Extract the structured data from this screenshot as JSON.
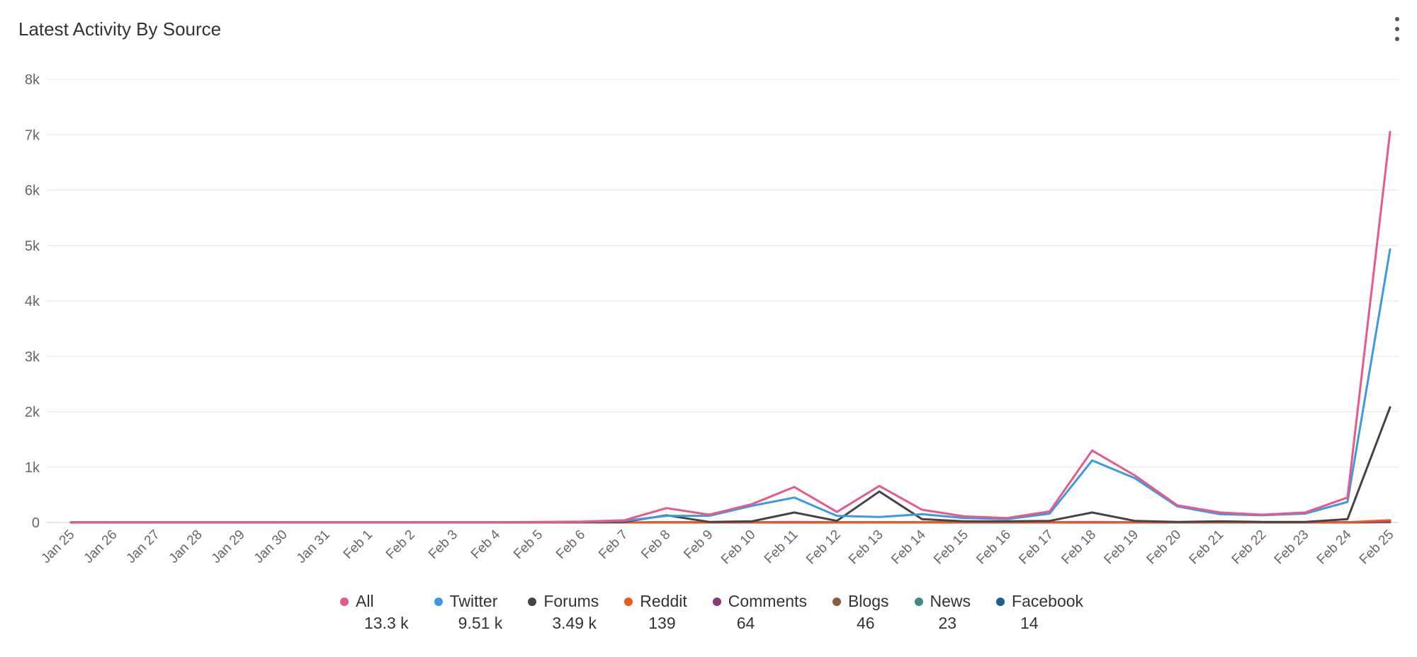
{
  "header": {
    "title": "Latest Activity By Source",
    "menu_icon": "vertical-dots-icon"
  },
  "chart_data": {
    "type": "line",
    "title": "Latest Activity By Source",
    "xlabel": "",
    "ylabel": "",
    "ylim": [
      0,
      8000
    ],
    "yticks": [
      {
        "value": 0,
        "label": "0"
      },
      {
        "value": 1000,
        "label": "1k"
      },
      {
        "value": 2000,
        "label": "2k"
      },
      {
        "value": 3000,
        "label": "3k"
      },
      {
        "value": 4000,
        "label": "4k"
      },
      {
        "value": 5000,
        "label": "5k"
      },
      {
        "value": 6000,
        "label": "6k"
      },
      {
        "value": 7000,
        "label": "7k"
      },
      {
        "value": 8000,
        "label": "8k"
      }
    ],
    "grid": true,
    "legend_position": "bottom",
    "categories": [
      "Jan 25",
      "Jan 26",
      "Jan 27",
      "Jan 28",
      "Jan 29",
      "Jan 30",
      "Jan 31",
      "Feb 1",
      "Feb 2",
      "Feb 3",
      "Feb 4",
      "Feb 5",
      "Feb 6",
      "Feb 7",
      "Feb 8",
      "Feb 9",
      "Feb 10",
      "Feb 11",
      "Feb 12",
      "Feb 13",
      "Feb 14",
      "Feb 15",
      "Feb 16",
      "Feb 17",
      "Feb 18",
      "Feb 19",
      "Feb 20",
      "Feb 21",
      "Feb 22",
      "Feb 23",
      "Feb 24",
      "Feb 25"
    ],
    "series": [
      {
        "name": "All",
        "total": "13.3 k",
        "color": "#e8598a",
        "values": [
          5,
          5,
          5,
          5,
          5,
          5,
          5,
          5,
          5,
          5,
          5,
          10,
          15,
          40,
          260,
          140,
          330,
          640,
          190,
          660,
          230,
          110,
          80,
          200,
          1300,
          850,
          310,
          180,
          140,
          180,
          450,
          7050
        ]
      },
      {
        "name": "Twitter",
        "total": "9.51 k",
        "color": "#3b9ae1",
        "values": [
          3,
          3,
          3,
          3,
          3,
          3,
          3,
          3,
          3,
          3,
          3,
          5,
          10,
          30,
          120,
          120,
          300,
          450,
          120,
          100,
          150,
          80,
          60,
          160,
          1120,
          800,
          290,
          150,
          130,
          160,
          370,
          4930
        ]
      },
      {
        "name": "Forums",
        "total": "3.49 k",
        "color": "#444444",
        "values": [
          1,
          1,
          1,
          1,
          1,
          1,
          1,
          1,
          1,
          1,
          1,
          2,
          5,
          10,
          130,
          10,
          20,
          180,
          30,
          560,
          60,
          20,
          20,
          30,
          180,
          30,
          10,
          20,
          10,
          10,
          60,
          2080
        ]
      },
      {
        "name": "Reddit",
        "total": "139",
        "color": "#ef5623",
        "values": [
          0,
          0,
          0,
          0,
          0,
          0,
          0,
          0,
          0,
          0,
          0,
          0,
          0,
          0,
          5,
          2,
          5,
          10,
          5,
          5,
          5,
          3,
          2,
          5,
          10,
          5,
          3,
          2,
          2,
          3,
          5,
          40
        ]
      },
      {
        "name": "Comments",
        "total": "64",
        "color": "#8b3a7c",
        "values": [
          0,
          0,
          0,
          0,
          0,
          0,
          0,
          0,
          0,
          0,
          0,
          0,
          0,
          0,
          2,
          1,
          2,
          4,
          2,
          2,
          2,
          1,
          1,
          2,
          4,
          2,
          1,
          1,
          1,
          1,
          2,
          20
        ]
      },
      {
        "name": "Blogs",
        "total": "46",
        "color": "#8d5a3c",
        "values": [
          0,
          0,
          0,
          0,
          0,
          0,
          0,
          0,
          0,
          0,
          0,
          0,
          0,
          0,
          2,
          1,
          2,
          3,
          1,
          2,
          2,
          1,
          1,
          2,
          3,
          2,
          1,
          1,
          1,
          1,
          2,
          15
        ]
      },
      {
        "name": "News",
        "total": "23",
        "color": "#3e8b86",
        "values": [
          0,
          0,
          0,
          0,
          0,
          0,
          0,
          0,
          0,
          0,
          0,
          0,
          0,
          0,
          1,
          0,
          1,
          2,
          1,
          1,
          1,
          0,
          0,
          1,
          2,
          1,
          0,
          0,
          0,
          0,
          1,
          8
        ]
      },
      {
        "name": "Facebook",
        "total": "14",
        "color": "#1d5f93",
        "values": [
          0,
          0,
          0,
          0,
          0,
          0,
          0,
          0,
          0,
          0,
          0,
          0,
          0,
          0,
          1,
          0,
          1,
          1,
          0,
          1,
          1,
          0,
          0,
          1,
          1,
          1,
          0,
          0,
          0,
          0,
          1,
          5
        ]
      }
    ]
  }
}
